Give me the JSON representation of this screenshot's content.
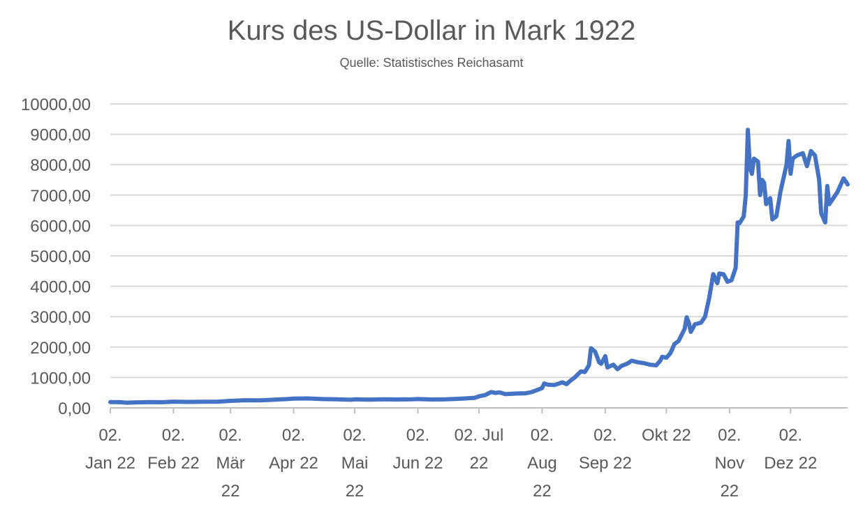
{
  "chart_data": {
    "type": "line",
    "title": "Kurs des US-Dollar in Mark 1922",
    "subtitle": "Quelle: Statistisches Reichasamt",
    "xlabel": "",
    "ylabel": "",
    "ylim": [
      0,
      10000
    ],
    "yticks": [
      "0,00",
      "1000,00",
      "2000,00",
      "3000,00",
      "4000,00",
      "5000,00",
      "6000,00",
      "7000,00",
      "8000,00",
      "9000,00",
      "10000,00"
    ],
    "xlim": [
      "1922-01-02",
      "1922-12-30"
    ],
    "xticks": [
      {
        "date": "1922-01-02",
        "lines": [
          "02.",
          "Jan 22"
        ]
      },
      {
        "date": "1922-02-02",
        "lines": [
          "02.",
          "Feb 22"
        ]
      },
      {
        "date": "1922-03-02",
        "lines": [
          "02.",
          "Mär",
          "22"
        ]
      },
      {
        "date": "1922-04-02",
        "lines": [
          "02.",
          "Apr 22"
        ]
      },
      {
        "date": "1922-05-02",
        "lines": [
          "02.",
          "Mai",
          "22"
        ]
      },
      {
        "date": "1922-06-02",
        "lines": [
          "02.",
          "Jun 22"
        ]
      },
      {
        "date": "1922-07-02",
        "lines": [
          "02. Jul",
          "22"
        ]
      },
      {
        "date": "1922-08-02",
        "lines": [
          "02.",
          "Aug",
          "22"
        ]
      },
      {
        "date": "1922-09-02",
        "lines": [
          "02.",
          "Sep 22"
        ]
      },
      {
        "date": "1922-10-02",
        "lines": [
          "Okt 22"
        ]
      },
      {
        "date": "1922-11-02",
        "lines": [
          "02.",
          "Nov",
          "22"
        ]
      },
      {
        "date": "1922-12-02",
        "lines": [
          "02.",
          "Dez 22"
        ]
      }
    ],
    "grid": true,
    "legend": "none",
    "series": [
      {
        "color": "#4472C4",
        "points": [
          [
            "1922-01-02",
            190
          ],
          [
            "1922-01-07",
            185
          ],
          [
            "1922-01-10",
            170
          ],
          [
            "1922-01-14",
            180
          ],
          [
            "1922-01-21",
            190
          ],
          [
            "1922-01-28",
            185
          ],
          [
            "1922-02-02",
            205
          ],
          [
            "1922-02-09",
            195
          ],
          [
            "1922-02-16",
            200
          ],
          [
            "1922-02-24",
            205
          ],
          [
            "1922-03-02",
            230
          ],
          [
            "1922-03-09",
            250
          ],
          [
            "1922-03-16",
            245
          ],
          [
            "1922-03-23",
            265
          ],
          [
            "1922-03-30",
            290
          ],
          [
            "1922-04-02",
            305
          ],
          [
            "1922-04-09",
            310
          ],
          [
            "1922-04-16",
            290
          ],
          [
            "1922-04-23",
            280
          ],
          [
            "1922-04-30",
            265
          ],
          [
            "1922-05-02",
            280
          ],
          [
            "1922-05-09",
            270
          ],
          [
            "1922-05-16",
            280
          ],
          [
            "1922-05-23",
            275
          ],
          [
            "1922-05-30",
            280
          ],
          [
            "1922-06-02",
            290
          ],
          [
            "1922-06-09",
            275
          ],
          [
            "1922-06-16",
            280
          ],
          [
            "1922-06-23",
            300
          ],
          [
            "1922-06-30",
            330
          ],
          [
            "1922-07-02",
            380
          ],
          [
            "1922-07-05",
            420
          ],
          [
            "1922-07-08",
            520
          ],
          [
            "1922-07-10",
            490
          ],
          [
            "1922-07-12",
            510
          ],
          [
            "1922-07-15",
            450
          ],
          [
            "1922-07-20",
            470
          ],
          [
            "1922-07-25",
            480
          ],
          [
            "1922-07-28",
            520
          ],
          [
            "1922-08-02",
            650
          ],
          [
            "1922-08-03",
            800
          ],
          [
            "1922-08-05",
            760
          ],
          [
            "1922-08-08",
            750
          ],
          [
            "1922-08-12",
            840
          ],
          [
            "1922-08-14",
            780
          ],
          [
            "1922-08-16",
            900
          ],
          [
            "1922-08-18",
            1000
          ],
          [
            "1922-08-21",
            1200
          ],
          [
            "1922-08-23",
            1180
          ],
          [
            "1922-08-25",
            1400
          ],
          [
            "1922-08-26",
            1960
          ],
          [
            "1922-08-28",
            1850
          ],
          [
            "1922-08-30",
            1500
          ],
          [
            "1922-08-31",
            1450
          ],
          [
            "1922-09-02",
            1700
          ],
          [
            "1922-09-03",
            1330
          ],
          [
            "1922-09-06",
            1420
          ],
          [
            "1922-09-08",
            1270
          ],
          [
            "1922-09-10",
            1380
          ],
          [
            "1922-09-13",
            1460
          ],
          [
            "1922-09-15",
            1550
          ],
          [
            "1922-09-18",
            1500
          ],
          [
            "1922-09-21",
            1470
          ],
          [
            "1922-09-24",
            1420
          ],
          [
            "1922-09-27",
            1400
          ],
          [
            "1922-09-29",
            1550
          ],
          [
            "1922-09-30",
            1680
          ],
          [
            "1922-10-02",
            1650
          ],
          [
            "1922-10-04",
            1800
          ],
          [
            "1922-10-06",
            2100
          ],
          [
            "1922-10-08",
            2200
          ],
          [
            "1922-10-11",
            2600
          ],
          [
            "1922-10-12",
            2980
          ],
          [
            "1922-10-13",
            2800
          ],
          [
            "1922-10-14",
            2500
          ],
          [
            "1922-10-16",
            2750
          ],
          [
            "1922-10-19",
            2800
          ],
          [
            "1922-10-21",
            3000
          ],
          [
            "1922-10-23",
            3600
          ],
          [
            "1922-10-25",
            4400
          ],
          [
            "1922-10-27",
            4100
          ],
          [
            "1922-10-28",
            4420
          ],
          [
            "1922-10-30",
            4400
          ],
          [
            "1922-11-01",
            4150
          ],
          [
            "1922-11-03",
            4200
          ],
          [
            "1922-11-05",
            4600
          ],
          [
            "1922-11-06",
            6100
          ],
          [
            "1922-11-07",
            6080
          ],
          [
            "1922-11-09",
            6300
          ],
          [
            "1922-11-10",
            7000
          ],
          [
            "1922-11-11",
            9150
          ],
          [
            "1922-11-12",
            7900
          ],
          [
            "1922-11-13",
            7700
          ],
          [
            "1922-11-14",
            8200
          ],
          [
            "1922-11-16",
            8100
          ],
          [
            "1922-11-17",
            7000
          ],
          [
            "1922-11-18",
            7500
          ],
          [
            "1922-11-19",
            7400
          ],
          [
            "1922-11-20",
            6700
          ],
          [
            "1922-11-22",
            6900
          ],
          [
            "1922-11-23",
            6200
          ],
          [
            "1922-11-25",
            6300
          ],
          [
            "1922-11-27",
            7100
          ],
          [
            "1922-11-30",
            8000
          ],
          [
            "1922-12-01",
            8780
          ],
          [
            "1922-12-02",
            7700
          ],
          [
            "1922-12-03",
            8200
          ],
          [
            "1922-12-05",
            8300
          ],
          [
            "1922-12-08",
            8380
          ],
          [
            "1922-12-10",
            7950
          ],
          [
            "1922-12-12",
            8450
          ],
          [
            "1922-12-14",
            8300
          ],
          [
            "1922-12-16",
            7500
          ],
          [
            "1922-12-17",
            6400
          ],
          [
            "1922-12-19",
            6100
          ],
          [
            "1922-12-20",
            7300
          ],
          [
            "1922-12-21",
            6700
          ],
          [
            "1922-12-22",
            6800
          ],
          [
            "1922-12-25",
            7100
          ],
          [
            "1922-12-28",
            7550
          ],
          [
            "1922-12-30",
            7350
          ]
        ]
      }
    ]
  }
}
